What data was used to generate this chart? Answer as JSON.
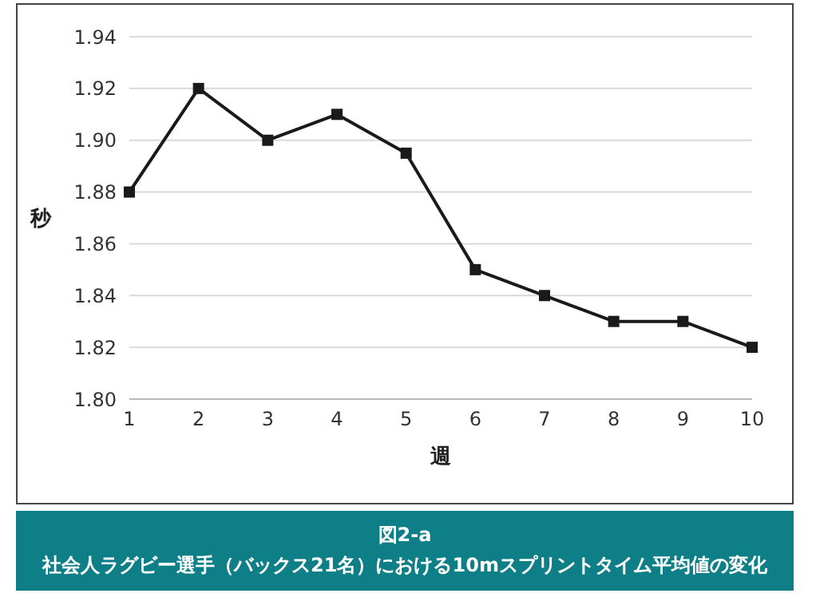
{
  "chart_data": {
    "type": "line",
    "title": "図2-a",
    "subtitle": "社会人ラグビー選手（バックス21名）における10mスプリントタイム平均値の変化",
    "xlabel": "週",
    "ylabel": "秒",
    "categories": [
      "1",
      "2",
      "3",
      "4",
      "5",
      "6",
      "7",
      "8",
      "9",
      "10"
    ],
    "series": [
      {
        "color": "#1a1a1a",
        "values": [
          1.88,
          1.92,
          1.9,
          1.91,
          1.895,
          1.85,
          1.84,
          1.83,
          1.83,
          1.82
        ]
      }
    ],
    "ylim": [
      1.8,
      1.94
    ],
    "yticks": [
      {
        "value": 1.8,
        "label": "1.80"
      },
      {
        "value": 1.82,
        "label": "1.82"
      },
      {
        "value": 1.84,
        "label": "1.84"
      },
      {
        "value": 1.86,
        "label": "1.86"
      },
      {
        "value": 1.88,
        "label": "1.88"
      },
      {
        "value": 1.9,
        "label": "1.90"
      },
      {
        "value": 1.92,
        "label": "1.92"
      },
      {
        "value": 1.94,
        "label": "1.94"
      }
    ],
    "grid": "y",
    "marker": "square",
    "line_style": "solid",
    "legend": false
  }
}
